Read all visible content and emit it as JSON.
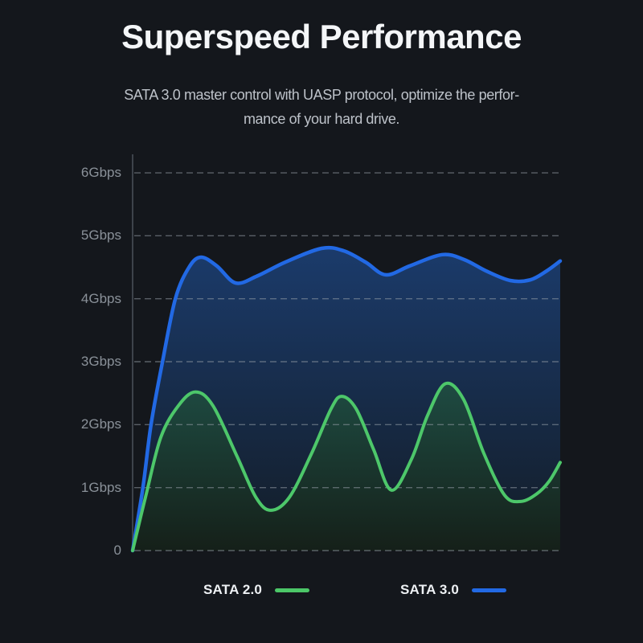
{
  "page": {
    "background": "#14171c"
  },
  "header": {
    "title": "Superspeed Performance",
    "subtitle_line1": "SATA 3.0 master control with UASP protocol, optimize the perfor-",
    "subtitle_line2": "mance of your hard drive."
  },
  "legend": {
    "items": [
      {
        "label": "SATA 2.0",
        "color": "#4cc768"
      },
      {
        "label": "SATA 3.0",
        "color": "#2269e4"
      }
    ]
  },
  "chart_data": {
    "type": "area",
    "title": "Superspeed Performance",
    "y_ticks": [
      "6Gbps",
      "5Gbps",
      "4Gbps",
      "3Gbps",
      "2Gbps",
      "1Gbps",
      "0"
    ],
    "y_tick_values": [
      6,
      5,
      4,
      3,
      2,
      1,
      0
    ],
    "ylim": [
      0,
      6.3
    ],
    "grid": "horizontal-dashed",
    "grid_color": "rgba(148,156,166,0.55)",
    "axis_color": "#3d434b",
    "legend_position": "bottom",
    "x_normalized": true,
    "series": [
      {
        "name": "SATA 3.0",
        "line_color": "#2269e4",
        "fill_top": "#1b3b6b",
        "fill_bottom": "#131c26",
        "line_width": 4.5,
        "x": [
          0,
          0.024,
          0.043,
          0.07,
          0.1,
          0.132,
          0.16,
          0.197,
          0.241,
          0.291,
          0.357,
          0.442,
          0.494,
          0.545,
          0.592,
          0.648,
          0.724,
          0.776,
          0.827,
          0.883,
          0.93,
          0.968,
          1.0
        ],
        "values": [
          0,
          1.0,
          2.0,
          3.0,
          4.0,
          4.5,
          4.66,
          4.52,
          4.25,
          4.36,
          4.58,
          4.8,
          4.76,
          4.58,
          4.38,
          4.52,
          4.7,
          4.62,
          4.44,
          4.29,
          4.3,
          4.44,
          4.6
        ]
      },
      {
        "name": "SATA 2.0",
        "line_color": "#4dc76a",
        "fill_top": "#1e4b42",
        "fill_bottom": "#152019",
        "line_width": 4,
        "x": [
          0,
          0.032,
          0.066,
          0.107,
          0.147,
          0.188,
          0.244,
          0.288,
          0.323,
          0.367,
          0.419,
          0.464,
          0.489,
          0.523,
          0.564,
          0.605,
          0.652,
          0.69,
          0.731,
          0.774,
          0.821,
          0.87,
          0.908,
          0.945,
          0.974,
          1.0
        ],
        "values": [
          0,
          0.9,
          1.8,
          2.3,
          2.52,
          2.3,
          1.5,
          0.85,
          0.64,
          0.85,
          1.55,
          2.25,
          2.45,
          2.25,
          1.6,
          0.96,
          1.45,
          2.15,
          2.65,
          2.4,
          1.55,
          0.88,
          0.78,
          0.9,
          1.1,
          1.4
        ]
      }
    ]
  }
}
